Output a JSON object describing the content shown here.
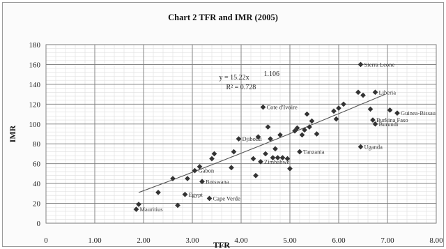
{
  "chart_data": {
    "type": "scatter",
    "title": "Chart 2  TFR and IMR (2005)",
    "xlabel": "TFR",
    "ylabel": "IMR",
    "xlim": [
      0,
      8
    ],
    "ylim": [
      0,
      180
    ],
    "x_ticks": [
      "0",
      "1.00",
      "2.00",
      "3.00",
      "4.00",
      "5.00",
      "6.00",
      "7.00",
      "8.00"
    ],
    "y_ticks": [
      "0",
      "20",
      "40",
      "60",
      "80",
      "100",
      "120",
      "140",
      "160",
      "180"
    ],
    "grid": true,
    "marker_color": "#333333",
    "trendline": {
      "type": "power",
      "a": 15.22,
      "b": 1.106
    },
    "equation_text": [
      "y = 15.22x",
      "1.106",
      "R² = 0.728"
    ],
    "points": [
      {
        "x": 1.85,
        "y": 14,
        "label": "Mauritius"
      },
      {
        "x": 1.9,
        "y": 19,
        "label": ""
      },
      {
        "x": 2.3,
        "y": 31,
        "label": ""
      },
      {
        "x": 2.6,
        "y": 45,
        "label": ""
      },
      {
        "x": 2.7,
        "y": 18,
        "label": ""
      },
      {
        "x": 2.85,
        "y": 29,
        "label": "Egypt"
      },
      {
        "x": 2.9,
        "y": 45,
        "label": ""
      },
      {
        "x": 3.05,
        "y": 53,
        "label": "Gabon"
      },
      {
        "x": 3.15,
        "y": 57,
        "label": ""
      },
      {
        "x": 3.2,
        "y": 42,
        "label": "Botswana"
      },
      {
        "x": 3.35,
        "y": 25,
        "label": "Cape Verde"
      },
      {
        "x": 3.4,
        "y": 65,
        "label": ""
      },
      {
        "x": 3.45,
        "y": 70,
        "label": ""
      },
      {
        "x": 3.8,
        "y": 56,
        "label": ""
      },
      {
        "x": 3.85,
        "y": 72,
        "label": ""
      },
      {
        "x": 3.95,
        "y": 85,
        "label": "Djibouti"
      },
      {
        "x": 4.25,
        "y": 65,
        "label": ""
      },
      {
        "x": 4.3,
        "y": 48,
        "label": ""
      },
      {
        "x": 4.35,
        "y": 87,
        "label": ""
      },
      {
        "x": 4.4,
        "y": 62,
        "label": "Zimbabwe"
      },
      {
        "x": 4.45,
        "y": 117,
        "label": "Cote d'Ivoire"
      },
      {
        "x": 4.5,
        "y": 70,
        "label": ""
      },
      {
        "x": 4.55,
        "y": 97,
        "label": ""
      },
      {
        "x": 4.6,
        "y": 85,
        "label": ""
      },
      {
        "x": 4.65,
        "y": 66,
        "label": ""
      },
      {
        "x": 4.7,
        "y": 75,
        "label": ""
      },
      {
        "x": 4.75,
        "y": 66,
        "label": ""
      },
      {
        "x": 4.8,
        "y": 89,
        "label": ""
      },
      {
        "x": 4.85,
        "y": 66,
        "label": ""
      },
      {
        "x": 4.95,
        "y": 65,
        "label": ""
      },
      {
        "x": 5.0,
        "y": 55,
        "label": ""
      },
      {
        "x": 5.1,
        "y": 93,
        "label": ""
      },
      {
        "x": 5.15,
        "y": 96,
        "label": ""
      },
      {
        "x": 5.2,
        "y": 72,
        "label": "Tanzania"
      },
      {
        "x": 5.25,
        "y": 89,
        "label": ""
      },
      {
        "x": 5.3,
        "y": 94,
        "label": ""
      },
      {
        "x": 5.35,
        "y": 110,
        "label": ""
      },
      {
        "x": 5.4,
        "y": 97,
        "label": ""
      },
      {
        "x": 5.45,
        "y": 103,
        "label": ""
      },
      {
        "x": 5.55,
        "y": 90,
        "label": ""
      },
      {
        "x": 5.9,
        "y": 113,
        "label": ""
      },
      {
        "x": 5.95,
        "y": 105,
        "label": ""
      },
      {
        "x": 6.0,
        "y": 116,
        "label": ""
      },
      {
        "x": 6.1,
        "y": 120,
        "label": ""
      },
      {
        "x": 6.4,
        "y": 132,
        "label": ""
      },
      {
        "x": 6.45,
        "y": 160,
        "label": "Sierra Leone"
      },
      {
        "x": 6.45,
        "y": 77,
        "label": "Uganda"
      },
      {
        "x": 6.5,
        "y": 129,
        "label": ""
      },
      {
        "x": 6.65,
        "y": 115,
        "label": ""
      },
      {
        "x": 6.7,
        "y": 104,
        "label": "Burkina Faso"
      },
      {
        "x": 6.75,
        "y": 132,
        "label": "Liberia"
      },
      {
        "x": 6.75,
        "y": 100,
        "label": "Burundi"
      },
      {
        "x": 7.05,
        "y": 114,
        "label": ""
      },
      {
        "x": 7.2,
        "y": 111,
        "label": "Guinea-Bissau"
      }
    ]
  }
}
